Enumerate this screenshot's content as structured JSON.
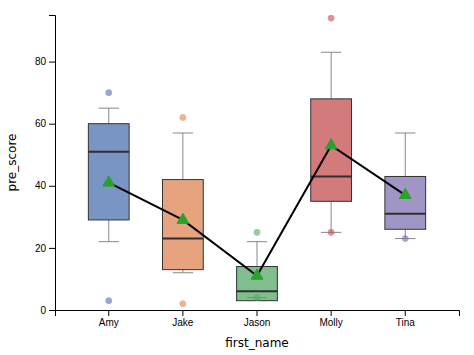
{
  "chart_data": {
    "type": "box",
    "xlabel": "first_name",
    "ylabel": "pre_score",
    "categories": [
      "Amy",
      "Jake",
      "Jason",
      "Molly",
      "Tina"
    ],
    "colors": [
      "#4c72b0",
      "#dd8452",
      "#55a868",
      "#c44e52",
      "#8172b2"
    ],
    "boxes": [
      {
        "med": 51,
        "q1": 29,
        "q3": 60,
        "whislo": 22,
        "whishi": 65,
        "fliers": [
          3,
          70
        ]
      },
      {
        "med": 23,
        "q1": 13,
        "q3": 42,
        "whislo": 12,
        "whishi": 57,
        "fliers": [
          62,
          2
        ]
      },
      {
        "med": 6,
        "q1": 3,
        "q3": 14,
        "whislo": 4,
        "whishi": 22,
        "fliers": [
          4,
          25
        ]
      },
      {
        "med": 43,
        "q1": 35,
        "q3": 68,
        "whislo": 25,
        "whishi": 83,
        "fliers": [
          25,
          94
        ]
      },
      {
        "med": 31,
        "q1": 26,
        "q3": 43,
        "whislo": 23,
        "whishi": 57,
        "fliers": [
          23
        ]
      }
    ],
    "series": [
      {
        "type": "line",
        "color": "black",
        "values": [
          41,
          29,
          11,
          53,
          37
        ]
      },
      {
        "type": "scatter",
        "color": "#2ca02c",
        "marker": "triangle",
        "values": [
          41,
          29,
          11,
          53,
          37
        ]
      }
    ],
    "ylim": [
      0,
      95
    ],
    "yticks": [
      0,
      20,
      40,
      60,
      80
    ],
    "grid": false
  }
}
